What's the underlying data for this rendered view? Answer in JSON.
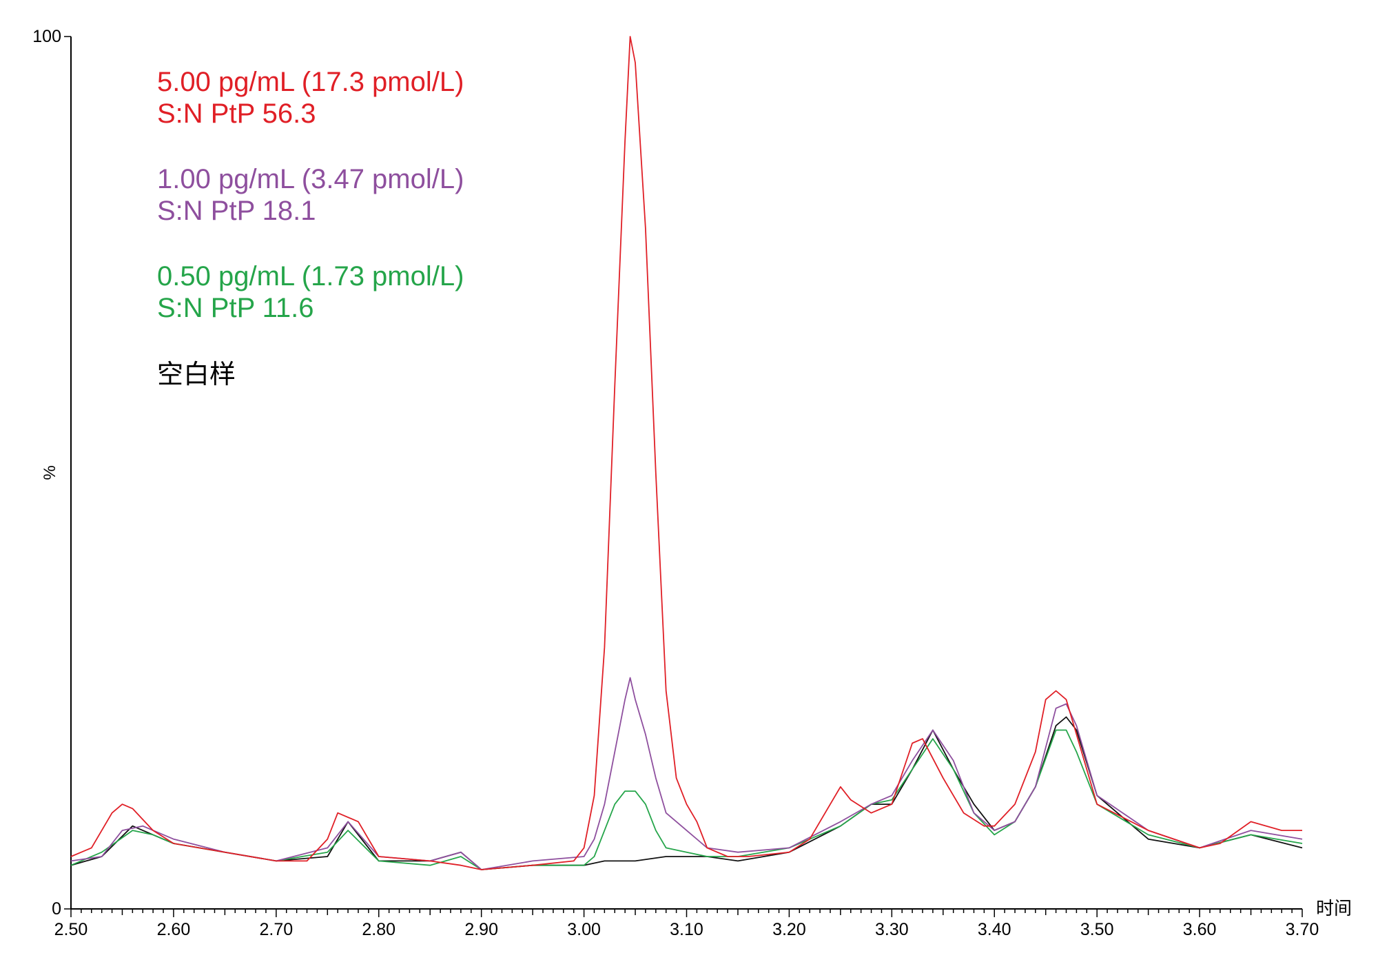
{
  "chart_data": {
    "type": "line",
    "title": "",
    "xlabel": "时间",
    "ylabel": "%",
    "xlim": [
      2.5,
      3.7
    ],
    "ylim": [
      0,
      100
    ],
    "x_ticks": [
      "2.50",
      "2.60",
      "2.70",
      "2.80",
      "2.90",
      "3.00",
      "3.10",
      "3.20",
      "3.30",
      "3.40",
      "3.50",
      "3.60",
      "3.70"
    ],
    "y_ticks": [
      "0",
      "100"
    ],
    "grid": false,
    "legend_position": "top-left",
    "series": [
      {
        "name": "5.00 pg/mL (17.3 pmol/L)",
        "annotation": "S:N PtP 56.3",
        "color": "#e01f26",
        "x": [
          2.5,
          2.52,
          2.54,
          2.55,
          2.56,
          2.58,
          2.6,
          2.65,
          2.7,
          2.73,
          2.75,
          2.76,
          2.78,
          2.8,
          2.85,
          2.88,
          2.9,
          2.95,
          2.99,
          3.0,
          3.01,
          3.02,
          3.03,
          3.04,
          3.045,
          3.05,
          3.06,
          3.07,
          3.08,
          3.09,
          3.1,
          3.11,
          3.12,
          3.14,
          3.16,
          3.2,
          3.22,
          3.24,
          3.25,
          3.26,
          3.28,
          3.3,
          3.32,
          3.33,
          3.35,
          3.37,
          3.39,
          3.4,
          3.42,
          3.44,
          3.45,
          3.46,
          3.47,
          3.48,
          3.5,
          3.55,
          3.6,
          3.62,
          3.65,
          3.68,
          3.7
        ],
        "y": [
          6,
          7,
          11,
          12,
          11.5,
          9,
          7.5,
          6.5,
          5.5,
          5.5,
          8,
          11,
          10,
          6,
          5.5,
          5,
          4.5,
          5,
          5.5,
          7,
          13,
          30,
          60,
          88,
          100,
          97,
          78,
          50,
          25,
          15,
          12,
          10,
          7,
          6,
          6,
          6.5,
          8,
          12,
          14,
          12.5,
          11,
          12,
          19,
          19.5,
          15,
          11,
          9.5,
          9.5,
          12,
          18,
          24,
          25,
          24,
          20,
          12,
          9,
          7,
          7.5,
          10,
          9,
          9
        ]
      },
      {
        "name": "1.00 pg/mL (3.47 pmol/L)",
        "annotation": "S:N PtP 18.1",
        "color": "#8e4f9e",
        "x": [
          2.5,
          2.53,
          2.55,
          2.57,
          2.6,
          2.65,
          2.7,
          2.75,
          2.77,
          2.8,
          2.85,
          2.88,
          2.9,
          2.95,
          3.0,
          3.01,
          3.02,
          3.03,
          3.04,
          3.045,
          3.05,
          3.06,
          3.07,
          3.08,
          3.1,
          3.12,
          3.15,
          3.2,
          3.25,
          3.28,
          3.3,
          3.32,
          3.34,
          3.36,
          3.38,
          3.4,
          3.42,
          3.44,
          3.46,
          3.47,
          3.48,
          3.5,
          3.55,
          3.6,
          3.65,
          3.7
        ],
        "y": [
          5.5,
          6,
          9,
          9.5,
          8,
          6.5,
          5.5,
          7,
          10,
          6,
          5.5,
          6.5,
          4.5,
          5.5,
          6,
          8,
          12,
          18,
          24,
          26.5,
          24,
          20,
          15,
          11,
          9,
          7,
          6.5,
          7,
          10,
          12,
          13,
          17,
          20.5,
          17,
          11,
          9,
          10,
          14,
          23,
          23.5,
          21,
          13,
          9,
          7,
          9,
          8
        ]
      },
      {
        "name": "0.50 pg/mL (1.73 pmol/L)",
        "annotation": "S:N PtP 11.6",
        "color": "#25a54a",
        "x": [
          2.5,
          2.53,
          2.56,
          2.58,
          2.6,
          2.65,
          2.7,
          2.75,
          2.77,
          2.8,
          2.85,
          2.88,
          2.9,
          2.95,
          3.0,
          3.01,
          3.02,
          3.03,
          3.04,
          3.05,
          3.06,
          3.07,
          3.08,
          3.1,
          3.12,
          3.15,
          3.2,
          3.25,
          3.28,
          3.3,
          3.32,
          3.34,
          3.36,
          3.38,
          3.4,
          3.42,
          3.44,
          3.46,
          3.47,
          3.48,
          3.5,
          3.55,
          3.6,
          3.65,
          3.7
        ],
        "y": [
          5,
          6.5,
          9,
          8.5,
          7.5,
          6.5,
          5.5,
          6.5,
          9,
          5.5,
          5,
          6,
          4.5,
          5,
          5,
          6,
          9,
          12,
          13.5,
          13.5,
          12,
          9,
          7,
          6.5,
          6,
          6,
          7,
          9.5,
          12,
          12.5,
          16,
          19.5,
          16,
          11,
          8.5,
          10,
          14,
          20.5,
          20.5,
          18,
          12,
          8.5,
          7,
          8.5,
          7.5
        ]
      },
      {
        "name": "空白样",
        "annotation": "",
        "color": "#111111",
        "x": [
          2.5,
          2.53,
          2.56,
          2.58,
          2.6,
          2.65,
          2.7,
          2.75,
          2.77,
          2.8,
          2.85,
          2.88,
          2.9,
          2.95,
          3.0,
          3.02,
          3.05,
          3.08,
          3.1,
          3.12,
          3.15,
          3.2,
          3.25,
          3.28,
          3.3,
          3.32,
          3.34,
          3.36,
          3.38,
          3.4,
          3.42,
          3.44,
          3.46,
          3.47,
          3.48,
          3.5,
          3.55,
          3.6,
          3.65,
          3.7
        ],
        "y": [
          5,
          6,
          9.5,
          8.5,
          7.5,
          6.5,
          5.5,
          6,
          10,
          5.5,
          5.5,
          6.5,
          4.5,
          5,
          5,
          5.5,
          5.5,
          6,
          6,
          6,
          5.5,
          6.5,
          9.5,
          12,
          12,
          16,
          20.5,
          16,
          12,
          9,
          10,
          14,
          21,
          22,
          20.5,
          13,
          8,
          7,
          8.5,
          7
        ]
      }
    ]
  }
}
